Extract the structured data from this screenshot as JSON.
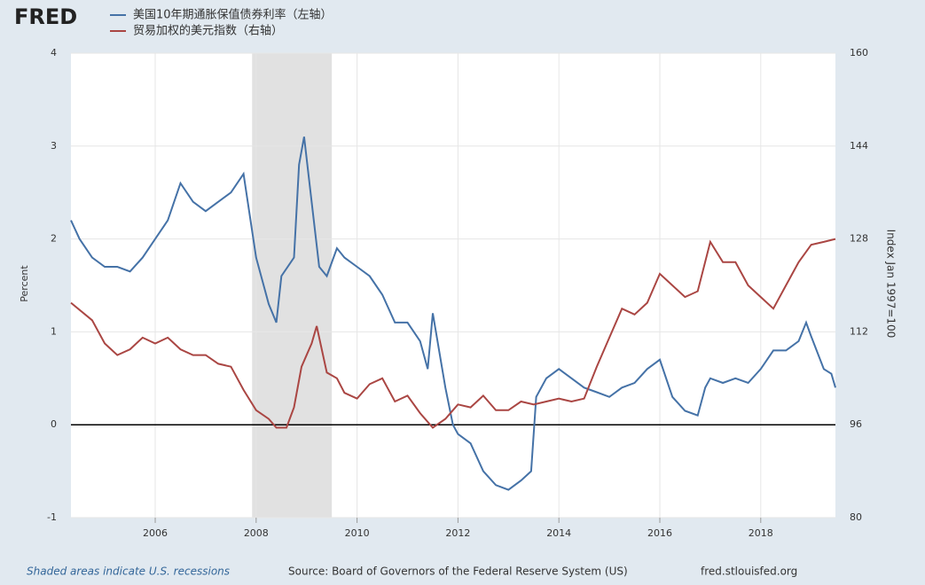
{
  "brand": "FRED",
  "chart_data": {
    "type": "line",
    "series": [
      {
        "name": "美国10年期通胀保值债券利率（左轴）",
        "color": "#4572a7",
        "axis": "y",
        "x": [
          2004.33,
          2004.5,
          2004.75,
          2005.0,
          2005.25,
          2005.5,
          2005.75,
          2006.0,
          2006.25,
          2006.5,
          2006.75,
          2007.0,
          2007.25,
          2007.5,
          2007.75,
          2008.0,
          2008.25,
          2008.4,
          2008.5,
          2008.75,
          2008.85,
          2008.95,
          2009.1,
          2009.25,
          2009.4,
          2009.6,
          2009.75,
          2010.0,
          2010.25,
          2010.5,
          2010.75,
          2011.0,
          2011.25,
          2011.4,
          2011.5,
          2011.75,
          2011.9,
          2012.0,
          2012.25,
          2012.5,
          2012.75,
          2013.0,
          2013.25,
          2013.45,
          2013.55,
          2013.75,
          2014.0,
          2014.25,
          2014.5,
          2014.75,
          2015.0,
          2015.25,
          2015.5,
          2015.75,
          2016.0,
          2016.25,
          2016.5,
          2016.75,
          2016.9,
          2017.0,
          2017.25,
          2017.5,
          2017.75,
          2018.0,
          2018.25,
          2018.5,
          2018.75,
          2018.9,
          2019.0,
          2019.25,
          2019.4,
          2019.48
        ],
        "values": [
          2.2,
          2.0,
          1.8,
          1.7,
          1.7,
          1.65,
          1.8,
          2.0,
          2.2,
          2.6,
          2.4,
          2.3,
          2.4,
          2.5,
          2.7,
          1.8,
          1.3,
          1.1,
          1.6,
          1.8,
          2.8,
          3.1,
          2.4,
          1.7,
          1.6,
          1.9,
          1.8,
          1.7,
          1.6,
          1.4,
          1.1,
          1.1,
          0.9,
          0.6,
          1.2,
          0.4,
          0.0,
          -0.1,
          -0.2,
          -0.5,
          -0.65,
          -0.7,
          -0.6,
          -0.5,
          0.3,
          0.5,
          0.6,
          0.5,
          0.4,
          0.35,
          0.3,
          0.4,
          0.45,
          0.6,
          0.7,
          0.3,
          0.15,
          0.1,
          0.4,
          0.5,
          0.45,
          0.5,
          0.45,
          0.6,
          0.8,
          0.8,
          0.9,
          1.1,
          0.95,
          0.6,
          0.55,
          0.4
        ]
      },
      {
        "name": "贸易加权的美元指数（右轴）",
        "color": "#aa4643",
        "axis": "y2",
        "x": [
          2004.33,
          2004.75,
          2005.0,
          2005.25,
          2005.5,
          2005.75,
          2006.0,
          2006.25,
          2006.5,
          2006.75,
          2007.0,
          2007.25,
          2007.5,
          2007.75,
          2008.0,
          2008.25,
          2008.4,
          2008.6,
          2008.75,
          2008.9,
          2009.1,
          2009.2,
          2009.4,
          2009.6,
          2009.75,
          2010.0,
          2010.25,
          2010.5,
          2010.75,
          2011.0,
          2011.25,
          2011.5,
          2011.75,
          2012.0,
          2012.25,
          2012.5,
          2012.75,
          2013.0,
          2013.25,
          2013.5,
          2013.75,
          2014.0,
          2014.25,
          2014.5,
          2014.75,
          2015.0,
          2015.25,
          2015.5,
          2015.75,
          2016.0,
          2016.25,
          2016.5,
          2016.75,
          2017.0,
          2017.25,
          2017.5,
          2017.75,
          2018.0,
          2018.25,
          2018.5,
          2018.75,
          2019.0,
          2019.25,
          2019.48
        ],
        "values": [
          117,
          114,
          110,
          108,
          109,
          111,
          110,
          111,
          109,
          108,
          108,
          106.5,
          106,
          102,
          98.5,
          97,
          95.5,
          95.5,
          99,
          106,
          110,
          113,
          105,
          104,
          101.5,
          100.5,
          103,
          104,
          100,
          101,
          98,
          95.5,
          97,
          99.5,
          99,
          101,
          98.5,
          98.5,
          100,
          99.5,
          100,
          100.5,
          100,
          100.5,
          106,
          111,
          116,
          115,
          117,
          122,
          120,
          118,
          119,
          127.5,
          124,
          124,
          120,
          118,
          116,
          120,
          124,
          127,
          127.5,
          128
        ]
      }
    ],
    "recessions": [
      [
        2007.92,
        2009.5
      ]
    ],
    "xlim": [
      2004.33,
      2019.48
    ],
    "xticks": [
      2006,
      2008,
      2010,
      2012,
      2014,
      2016,
      2018
    ],
    "ylim": [
      -1,
      4
    ],
    "yticks": [
      -1,
      0,
      1,
      2,
      3,
      4
    ],
    "y2lim": [
      80,
      160
    ],
    "y2ticks": [
      80,
      96,
      112,
      128,
      144,
      160
    ],
    "ylabel": "Percent",
    "y2label": "Index Jan 1997=100",
    "grid": true,
    "recession_note": "Shaded areas indicate U.S. recessions",
    "source": "Source: Board of Governors of the Federal Reserve System (US)",
    "site": "fred.stlouisfed.org"
  }
}
